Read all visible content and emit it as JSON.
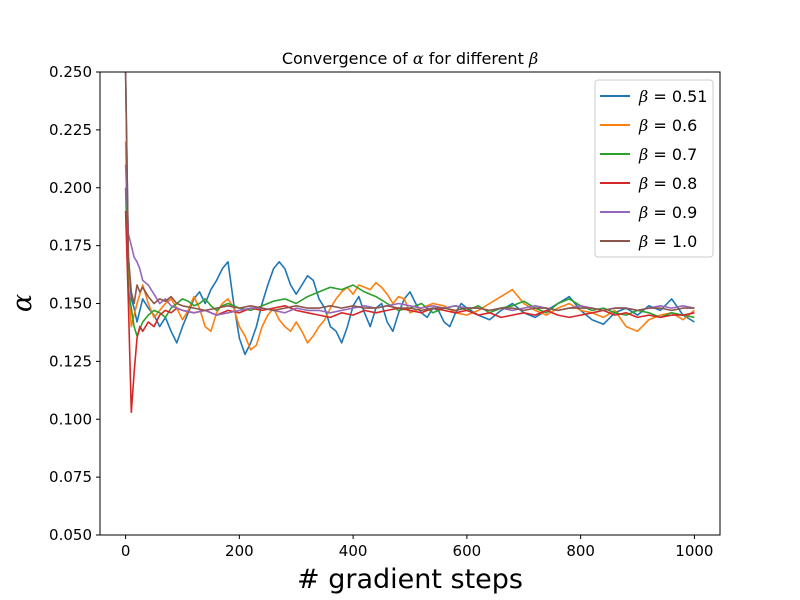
{
  "chart_data": {
    "type": "line",
    "title_parts": [
      "Convergence of ",
      "α",
      " for different ",
      "β"
    ],
    "xlabel": "# gradient steps",
    "ylabel": "α",
    "xlim": [
      -45,
      1045
    ],
    "ylim": [
      0.05,
      0.25
    ],
    "xticks": [
      0,
      200,
      400,
      600,
      800,
      1000
    ],
    "xtick_labels": [
      "0",
      "200",
      "400",
      "600",
      "800",
      "1000"
    ],
    "yticks": [
      0.05,
      0.075,
      0.1,
      0.125,
      0.15,
      0.175,
      0.2,
      0.225,
      0.25
    ],
    "ytick_labels": [
      "0.050",
      "0.075",
      "0.100",
      "0.125",
      "0.150",
      "0.175",
      "0.200",
      "0.225",
      "0.250"
    ],
    "grid": false,
    "legend_position": "top-right",
    "series": [
      {
        "name": "β = 0.51",
        "legend_symbol": "β",
        "legend_value": " = 0.51",
        "color": "#1f77b4",
        "x": [
          0,
          5,
          10,
          15,
          20,
          30,
          40,
          50,
          60,
          70,
          80,
          90,
          100,
          110,
          120,
          130,
          140,
          150,
          160,
          170,
          180,
          190,
          200,
          210,
          220,
          230,
          240,
          250,
          260,
          270,
          280,
          290,
          300,
          310,
          320,
          330,
          340,
          350,
          360,
          370,
          380,
          390,
          400,
          410,
          420,
          430,
          440,
          450,
          460,
          470,
          480,
          490,
          500,
          510,
          520,
          530,
          540,
          550,
          560,
          570,
          580,
          590,
          600,
          620,
          640,
          660,
          680,
          700,
          720,
          740,
          760,
          780,
          800,
          820,
          840,
          860,
          880,
          900,
          920,
          940,
          960,
          980,
          1000
        ],
        "y": [
          0.25,
          0.17,
          0.152,
          0.148,
          0.142,
          0.152,
          0.148,
          0.145,
          0.14,
          0.144,
          0.138,
          0.133,
          0.14,
          0.146,
          0.152,
          0.155,
          0.15,
          0.156,
          0.16,
          0.165,
          0.168,
          0.15,
          0.135,
          0.128,
          0.133,
          0.14,
          0.15,
          0.158,
          0.165,
          0.168,
          0.165,
          0.158,
          0.154,
          0.158,
          0.162,
          0.16,
          0.152,
          0.148,
          0.14,
          0.138,
          0.133,
          0.14,
          0.149,
          0.153,
          0.146,
          0.14,
          0.148,
          0.15,
          0.142,
          0.138,
          0.146,
          0.152,
          0.155,
          0.15,
          0.146,
          0.144,
          0.148,
          0.147,
          0.142,
          0.14,
          0.146,
          0.15,
          0.148,
          0.145,
          0.143,
          0.147,
          0.15,
          0.146,
          0.144,
          0.147,
          0.15,
          0.153,
          0.147,
          0.143,
          0.141,
          0.146,
          0.148,
          0.145,
          0.149,
          0.147,
          0.152,
          0.145,
          0.142
        ]
      },
      {
        "name": "β = 0.6",
        "legend_symbol": "β",
        "legend_value": " = 0.6",
        "color": "#ff7f0e",
        "x": [
          0,
          5,
          10,
          15,
          20,
          30,
          40,
          50,
          60,
          70,
          80,
          90,
          100,
          110,
          120,
          130,
          140,
          150,
          160,
          170,
          180,
          190,
          200,
          210,
          220,
          230,
          240,
          250,
          260,
          270,
          280,
          290,
          300,
          310,
          320,
          330,
          340,
          350,
          360,
          370,
          380,
          390,
          400,
          410,
          420,
          430,
          440,
          450,
          460,
          470,
          480,
          490,
          500,
          520,
          540,
          560,
          580,
          600,
          620,
          640,
          660,
          680,
          700,
          720,
          740,
          760,
          780,
          800,
          820,
          840,
          860,
          880,
          900,
          920,
          940,
          960,
          980,
          1000
        ],
        "y": [
          0.22,
          0.16,
          0.14,
          0.145,
          0.15,
          0.158,
          0.15,
          0.144,
          0.147,
          0.15,
          0.152,
          0.148,
          0.143,
          0.147,
          0.153,
          0.148,
          0.14,
          0.138,
          0.146,
          0.15,
          0.152,
          0.148,
          0.14,
          0.136,
          0.13,
          0.132,
          0.14,
          0.145,
          0.148,
          0.143,
          0.14,
          0.138,
          0.142,
          0.138,
          0.133,
          0.136,
          0.14,
          0.143,
          0.148,
          0.152,
          0.155,
          0.157,
          0.154,
          0.158,
          0.157,
          0.156,
          0.159,
          0.157,
          0.154,
          0.15,
          0.153,
          0.152,
          0.146,
          0.148,
          0.15,
          0.149,
          0.146,
          0.145,
          0.147,
          0.15,
          0.153,
          0.156,
          0.15,
          0.147,
          0.145,
          0.148,
          0.15,
          0.147,
          0.146,
          0.144,
          0.147,
          0.14,
          0.138,
          0.143,
          0.145,
          0.146,
          0.143,
          0.147
        ]
      },
      {
        "name": "β = 0.7",
        "legend_symbol": "β",
        "legend_value": " = 0.7",
        "color": "#2ca02c",
        "x": [
          0,
          5,
          10,
          15,
          20,
          30,
          40,
          50,
          60,
          70,
          80,
          90,
          100,
          110,
          120,
          130,
          140,
          150,
          160,
          170,
          180,
          190,
          200,
          220,
          240,
          260,
          280,
          300,
          320,
          340,
          360,
          380,
          400,
          420,
          440,
          460,
          480,
          500,
          520,
          540,
          560,
          580,
          600,
          620,
          640,
          660,
          680,
          700,
          720,
          740,
          760,
          780,
          800,
          820,
          840,
          860,
          880,
          900,
          920,
          940,
          960,
          980,
          1000
        ],
        "y": [
          0.2,
          0.155,
          0.148,
          0.14,
          0.136,
          0.142,
          0.145,
          0.147,
          0.146,
          0.144,
          0.148,
          0.15,
          0.152,
          0.151,
          0.149,
          0.15,
          0.152,
          0.149,
          0.147,
          0.149,
          0.15,
          0.149,
          0.148,
          0.147,
          0.149,
          0.151,
          0.152,
          0.15,
          0.153,
          0.155,
          0.157,
          0.156,
          0.158,
          0.155,
          0.153,
          0.15,
          0.147,
          0.148,
          0.15,
          0.146,
          0.148,
          0.149,
          0.147,
          0.149,
          0.146,
          0.148,
          0.149,
          0.151,
          0.148,
          0.146,
          0.15,
          0.152,
          0.149,
          0.147,
          0.148,
          0.146,
          0.145,
          0.147,
          0.146,
          0.144,
          0.146,
          0.145,
          0.144
        ]
      },
      {
        "name": "β = 0.8",
        "legend_symbol": "β",
        "legend_value": " = 0.8",
        "color": "#d62728",
        "x": [
          0,
          5,
          10,
          15,
          20,
          25,
          30,
          40,
          50,
          60,
          70,
          80,
          90,
          100,
          120,
          140,
          160,
          180,
          200,
          220,
          240,
          260,
          280,
          300,
          320,
          340,
          360,
          380,
          400,
          420,
          440,
          460,
          480,
          500,
          520,
          540,
          560,
          580,
          600,
          620,
          640,
          660,
          680,
          700,
          720,
          740,
          760,
          780,
          800,
          820,
          840,
          860,
          880,
          900,
          920,
          940,
          960,
          980,
          1000
        ],
        "y": [
          0.19,
          0.15,
          0.103,
          0.12,
          0.135,
          0.14,
          0.138,
          0.142,
          0.14,
          0.145,
          0.147,
          0.146,
          0.148,
          0.147,
          0.146,
          0.147,
          0.145,
          0.147,
          0.146,
          0.148,
          0.147,
          0.148,
          0.149,
          0.147,
          0.146,
          0.145,
          0.144,
          0.146,
          0.145,
          0.147,
          0.146,
          0.147,
          0.148,
          0.147,
          0.146,
          0.148,
          0.147,
          0.146,
          0.147,
          0.145,
          0.146,
          0.144,
          0.145,
          0.146,
          0.145,
          0.147,
          0.145,
          0.144,
          0.145,
          0.146,
          0.147,
          0.145,
          0.146,
          0.144,
          0.145,
          0.144,
          0.145,
          0.145,
          0.146
        ]
      },
      {
        "name": "β = 0.9",
        "legend_symbol": "β",
        "legend_value": " = 0.9",
        "color": "#9467bd",
        "x": [
          0,
          5,
          10,
          15,
          20,
          25,
          30,
          40,
          50,
          60,
          70,
          80,
          90,
          100,
          120,
          140,
          160,
          180,
          200,
          220,
          240,
          260,
          280,
          300,
          320,
          340,
          360,
          380,
          400,
          420,
          440,
          460,
          480,
          500,
          520,
          540,
          560,
          580,
          600,
          620,
          640,
          660,
          680,
          700,
          720,
          740,
          760,
          780,
          800,
          820,
          840,
          860,
          880,
          900,
          920,
          940,
          960,
          980,
          1000
        ],
        "y": [
          0.21,
          0.18,
          0.175,
          0.17,
          0.168,
          0.165,
          0.16,
          0.158,
          0.154,
          0.15,
          0.152,
          0.149,
          0.148,
          0.147,
          0.146,
          0.147,
          0.145,
          0.146,
          0.147,
          0.148,
          0.148,
          0.147,
          0.146,
          0.148,
          0.147,
          0.147,
          0.146,
          0.147,
          0.148,
          0.149,
          0.148,
          0.149,
          0.15,
          0.149,
          0.148,
          0.149,
          0.148,
          0.149,
          0.148,
          0.148,
          0.147,
          0.148,
          0.147,
          0.148,
          0.149,
          0.148,
          0.147,
          0.148,
          0.149,
          0.148,
          0.147,
          0.148,
          0.148,
          0.147,
          0.148,
          0.149,
          0.148,
          0.149,
          0.148
        ]
      },
      {
        "name": "β = 1.0",
        "legend_symbol": "β",
        "legend_value": " = 1.0",
        "color": "#8c564b",
        "x": [
          0,
          5,
          10,
          15,
          20,
          25,
          30,
          40,
          50,
          60,
          70,
          80,
          90,
          100,
          120,
          140,
          160,
          180,
          200,
          220,
          240,
          260,
          280,
          300,
          320,
          340,
          360,
          380,
          400,
          420,
          440,
          460,
          480,
          500,
          520,
          540,
          560,
          580,
          600,
          620,
          640,
          660,
          680,
          700,
          720,
          740,
          760,
          780,
          800,
          820,
          840,
          860,
          880,
          900,
          920,
          940,
          960,
          980,
          1000
        ],
        "y": [
          0.25,
          0.17,
          0.155,
          0.15,
          0.158,
          0.155,
          0.157,
          0.153,
          0.15,
          0.152,
          0.151,
          0.153,
          0.15,
          0.149,
          0.148,
          0.147,
          0.148,
          0.149,
          0.148,
          0.149,
          0.148,
          0.147,
          0.148,
          0.149,
          0.148,
          0.148,
          0.149,
          0.148,
          0.149,
          0.148,
          0.148,
          0.149,
          0.148,
          0.148,
          0.147,
          0.148,
          0.148,
          0.147,
          0.148,
          0.148,
          0.147,
          0.148,
          0.148,
          0.147,
          0.148,
          0.148,
          0.147,
          0.148,
          0.148,
          0.148,
          0.147,
          0.148,
          0.148,
          0.147,
          0.148,
          0.148,
          0.147,
          0.148,
          0.148
        ]
      }
    ]
  }
}
